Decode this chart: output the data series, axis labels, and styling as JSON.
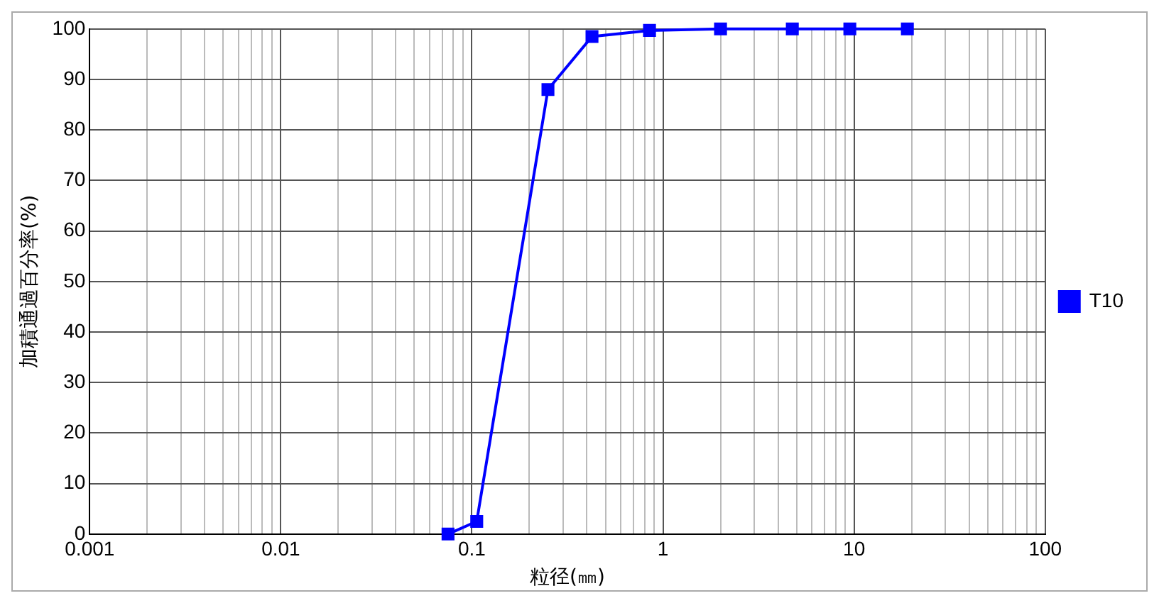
{
  "chart_data": {
    "type": "line",
    "xlabel": "粒径(㎜)",
    "ylabel": "加積通過百分率(%)",
    "x": [
      0.075,
      0.106,
      0.25,
      0.425,
      0.85,
      2,
      4.75,
      9.5,
      19
    ],
    "series": [
      {
        "name": "T10",
        "color": "#0000ff",
        "values": [
          0,
          2.5,
          88,
          98.5,
          99.7,
          100,
          100,
          100,
          100
        ]
      }
    ],
    "xlim": [
      0.001,
      100
    ],
    "xticks": [
      {
        "value": 0.001,
        "label": "0.001"
      },
      {
        "value": 0.01,
        "label": "0.01"
      },
      {
        "value": 0.1,
        "label": "0.1"
      },
      1,
      10,
      100
    ],
    "ylim": [
      0,
      100
    ],
    "yticks": [
      0,
      10,
      20,
      30,
      40,
      50,
      60,
      70,
      80,
      90,
      100
    ],
    "log": "x",
    "grid": true,
    "legend": "right",
    "marker": "square",
    "line_style": "solid"
  }
}
